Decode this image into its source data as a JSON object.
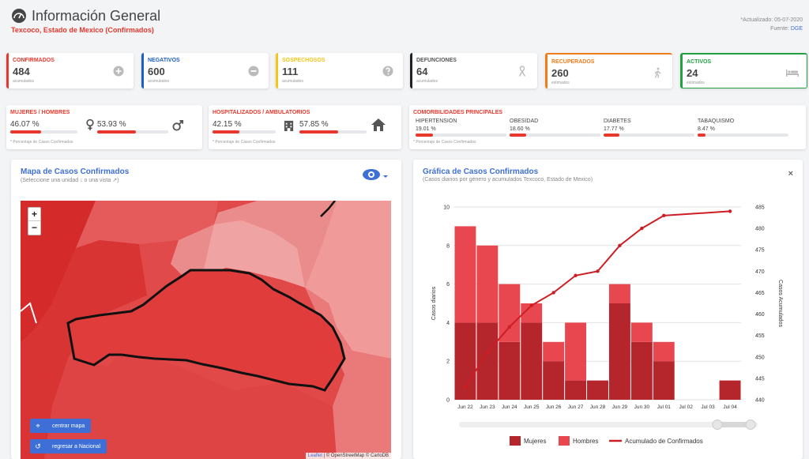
{
  "header": {
    "title": "Información General",
    "subtitle": "Texcoco, Estado de Mexico (Confirmados)",
    "updated": "*Actualizado: 05-07-2020",
    "source_label": "Fuente:",
    "source_link": "DGE",
    "icon": "dashboard-gauge-icon"
  },
  "stats": [
    {
      "label": "CONFIRMADOS",
      "value": "484",
      "sub": "acumulados",
      "color": "#e8372c",
      "icon": "plus-circle-icon"
    },
    {
      "label": "NEGATIVOS",
      "value": "600",
      "sub": "acumulados",
      "color": "#1f5fbf",
      "icon": "minus-circle-icon"
    },
    {
      "label": "SOSPECHOSOS",
      "value": "111",
      "sub": "acumulados",
      "color": "#f5c518",
      "icon": "question-circle-icon"
    },
    {
      "label": "DEFUNCIONES",
      "value": "64",
      "sub": "acumulados",
      "color": "#222222",
      "icon": "ribbon-icon"
    },
    {
      "label": "RECUPERADOS",
      "value": "260",
      "sub": "estimados",
      "color": "#f07c1a",
      "icon": "walking-icon"
    },
    {
      "label": "ACTIVOS",
      "value": "24",
      "sub": "estimados",
      "color": "#22a043",
      "icon": "bed-icon"
    }
  ],
  "gender": {
    "title": "MUJERES / HOMBRES",
    "women_pct": "46.07 %",
    "men_pct": "53.93 %",
    "women_value": 46.07,
    "men_value": 53.93,
    "note": "* Porcentaje de Casos Confirmados"
  },
  "hosp": {
    "title": "HOSPITALIZADOS / AMBULATORIOS",
    "hosp_pct": "42.15 %",
    "amb_pct": "57.85 %",
    "hosp_value": 42.15,
    "amb_value": 57.85,
    "note": "* Porcentaje de Casos Confirmados"
  },
  "comorb": {
    "title": "COMORBILIDADES PRINCIPALES",
    "items": [
      {
        "name": "HIPERTENSION",
        "pct": "19.01 %",
        "value": 19.01
      },
      {
        "name": "OBESIDAD",
        "pct": "18.60 %",
        "value": 18.6
      },
      {
        "name": "DIABETES",
        "pct": "17.77 %",
        "value": 17.77
      },
      {
        "name": "TABAQUISMO",
        "pct": "8.47 %",
        "value": 8.47
      }
    ],
    "note": "* Porcentaje de Casos Confirmados"
  },
  "map_panel": {
    "title": "Mapa de Casos Confirmados",
    "subtitle": "(Seleccione una unidad ↓ o una vista ↗)",
    "zoom_in": "+",
    "zoom_out": "−",
    "center_btn": "centrar mapa",
    "back_btn": "regresar a Nacional",
    "attribution_leaflet": "Leaflet",
    "attribution_rest": " | © OpenStreetMap © CartoDB"
  },
  "chart_panel": {
    "title": "Gráfica de Casos Confirmados",
    "subtitle": "(Casos diarios por género y acumulados Texcoco, Estado de Mexico)",
    "close": "×"
  },
  "chart_data": {
    "type": "bar",
    "categories": [
      "Jun 22",
      "Jun 23",
      "Jun 24",
      "Jun 25",
      "Jun 26",
      "Jun 27",
      "Jun 28",
      "Jun 29",
      "Jun 30",
      "Jul 01",
      "Jul 02",
      "Jul 03",
      "Jul 04"
    ],
    "series": [
      {
        "name": "Mujeres",
        "type": "bar",
        "values": [
          4,
          4,
          3,
          4,
          2,
          1,
          1,
          5,
          3,
          2,
          0,
          0,
          1
        ],
        "color": "#b5252c"
      },
      {
        "name": "Hombres",
        "type": "bar",
        "values": [
          5,
          4,
          3,
          1,
          1,
          3,
          0,
          1,
          1,
          1,
          0,
          0,
          0
        ],
        "color": "#e8474f"
      },
      {
        "name": "Acumulado de Confirmados",
        "type": "line",
        "axis": "right",
        "values": [
          443,
          451,
          457,
          462,
          465,
          469,
          470,
          476,
          480,
          483,
          null,
          null,
          484
        ],
        "color": "#cc1f24"
      }
    ],
    "ylabel": "Casos diarios",
    "ylabel_right": "Casos Acumulados",
    "ylim": [
      0,
      10
    ],
    "y_ticks": [
      0,
      2,
      4,
      6,
      8,
      10
    ],
    "ylim_right": [
      440,
      485
    ],
    "y_ticks_right": [
      440,
      445,
      450,
      455,
      460,
      465,
      470,
      475,
      480,
      485
    ],
    "stacked": true,
    "grid": true,
    "legend": "bottom"
  }
}
